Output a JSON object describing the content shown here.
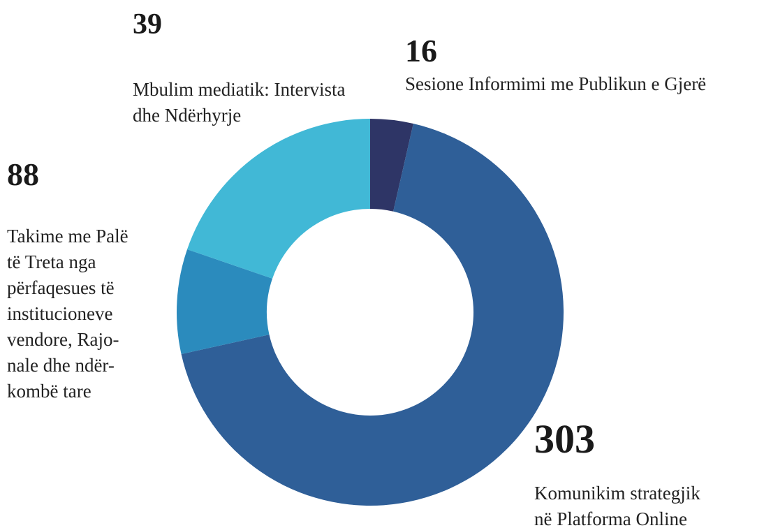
{
  "chart_data": {
    "type": "donut",
    "categories": [
      [
        "Sesione Informimi me Publikun e Gjerë"
      ],
      [
        "Komunikim strategjik",
        "në Platforma Online"
      ],
      [
        "Mbulim mediatik: Intervista",
        "dhe Ndërhyrje"
      ],
      [
        "Takime me Palë",
        "të Treta nga",
        "përfaqesues të",
        "institucioneve",
        "vendore, Rajo-",
        "nale dhe ndër-",
        "kombë tare"
      ]
    ],
    "values": [
      16,
      303,
      39,
      88
    ],
    "colors": [
      "#2e3566",
      "#2f5f98",
      "#2b8bbd",
      "#41b8d6"
    ]
  }
}
